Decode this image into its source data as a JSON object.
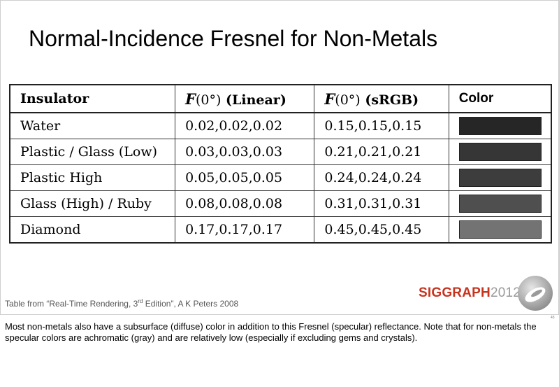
{
  "slide": {
    "title": "Normal-Incidence Fresnel for Non-Metals",
    "table": {
      "headers": {
        "insulator": "Insulator",
        "linear_symbol": "F",
        "linear_arg": "(0°)",
        "linear_label": "(Linear)",
        "srgb_symbol": "F",
        "srgb_arg": "(0°)",
        "srgb_label": "(sRGB)",
        "color": "Color"
      },
      "rows": [
        {
          "insulator": "Water",
          "linear": "0.02,0.02,0.02",
          "srgb": "0.15,0.15,0.15",
          "color": "#262626"
        },
        {
          "insulator": "Plastic / Glass (Low)",
          "linear": "0.03,0.03,0.03",
          "srgb": "0.21,0.21,0.21",
          "color": "#363636"
        },
        {
          "insulator": "Plastic High",
          "linear": "0.05,0.05,0.05",
          "srgb": "0.24,0.24,0.24",
          "color": "#3d3d3d"
        },
        {
          "insulator": "Glass (High) / Ruby",
          "linear": "0.08,0.08,0.08",
          "srgb": "0.31,0.31,0.31",
          "color": "#4f4f4f"
        },
        {
          "insulator": "Diamond",
          "linear": "0.17,0.17,0.17",
          "srgb": "0.45,0.45,0.45",
          "color": "#737373"
        }
      ]
    },
    "caption": {
      "before": "Table from “Real-Time Rendering, 3",
      "sup": "rd",
      "after": " Edition”, A K Peters 2008"
    },
    "logo": {
      "name": "SIGGRAPH",
      "year": "2012",
      "icon": "siggraph-logo-icon"
    },
    "page_number": "43"
  },
  "notes": "Most non-metals also have a subsurface (diffuse) color in addition to this Fresnel (specular) reflectance. Note that for non-metals the specular colors are achromatic (gray) and are relatively low (especially if excluding gems and crystals)."
}
